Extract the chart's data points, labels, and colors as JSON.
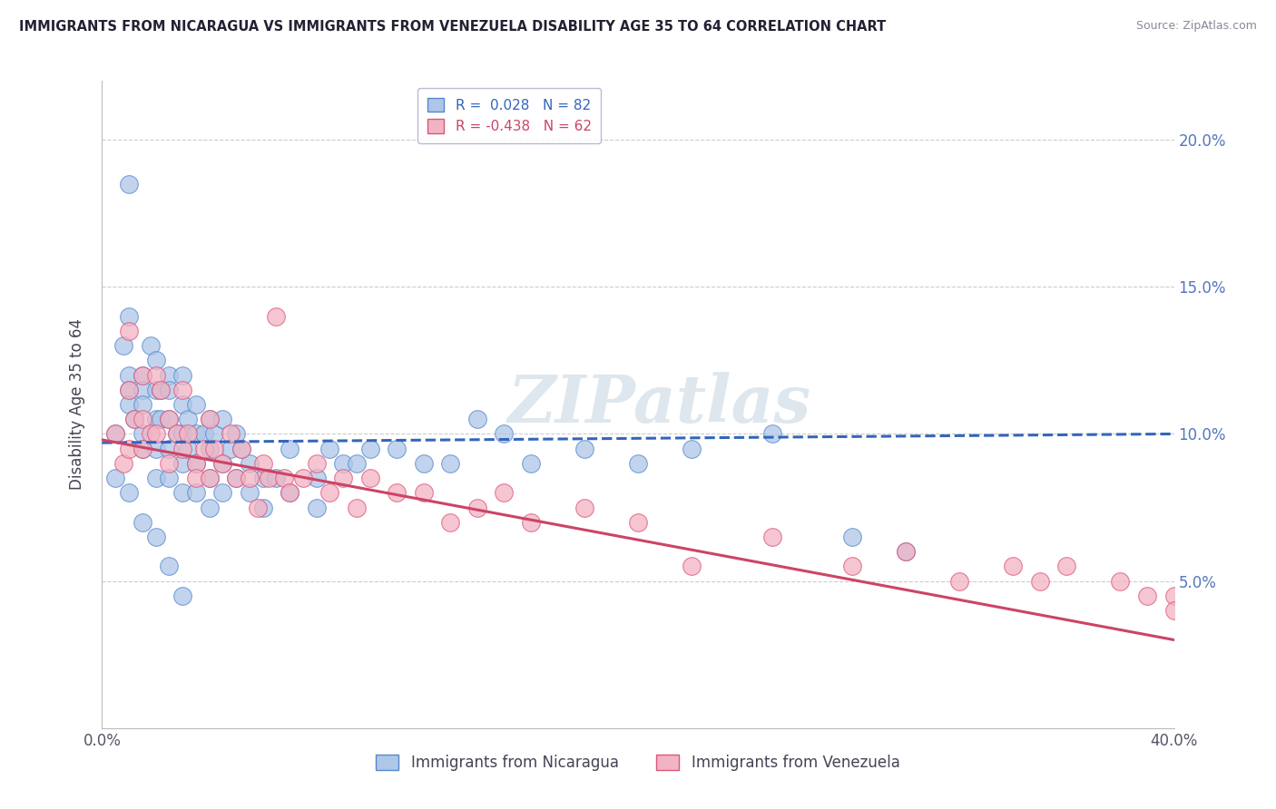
{
  "title": "IMMIGRANTS FROM NICARAGUA VS IMMIGRANTS FROM VENEZUELA DISABILITY AGE 35 TO 64 CORRELATION CHART",
  "source": "Source: ZipAtlas.com",
  "ylabel": "Disability Age 35 to 64",
  "xlim": [
    0.0,
    0.4
  ],
  "ylim": [
    0.0,
    0.22
  ],
  "xticks": [
    0.0,
    0.05,
    0.1,
    0.15,
    0.2,
    0.25,
    0.3,
    0.35,
    0.4
  ],
  "yticks": [
    0.0,
    0.05,
    0.1,
    0.15,
    0.2
  ],
  "nicaragua_color": "#aec6e8",
  "venezuela_color": "#f2b4c4",
  "nicaragua_edge_color": "#5588cc",
  "venezuela_edge_color": "#dd5577",
  "nicaragua_line_color": "#3366bb",
  "venezuela_line_color": "#cc4466",
  "R_nicaragua": 0.028,
  "N_nicaragua": 82,
  "R_venezuela": -0.438,
  "N_venezuela": 62,
  "nicaragua_x": [
    0.005,
    0.008,
    0.01,
    0.01,
    0.01,
    0.01,
    0.01,
    0.012,
    0.015,
    0.015,
    0.015,
    0.015,
    0.015,
    0.018,
    0.02,
    0.02,
    0.02,
    0.02,
    0.02,
    0.022,
    0.022,
    0.025,
    0.025,
    0.025,
    0.025,
    0.025,
    0.028,
    0.03,
    0.03,
    0.03,
    0.03,
    0.03,
    0.032,
    0.032,
    0.035,
    0.035,
    0.035,
    0.035,
    0.038,
    0.04,
    0.04,
    0.04,
    0.04,
    0.042,
    0.045,
    0.045,
    0.045,
    0.048,
    0.05,
    0.05,
    0.052,
    0.055,
    0.055,
    0.06,
    0.06,
    0.065,
    0.07,
    0.07,
    0.08,
    0.08,
    0.085,
    0.09,
    0.095,
    0.1,
    0.11,
    0.12,
    0.13,
    0.14,
    0.15,
    0.16,
    0.18,
    0.2,
    0.22,
    0.25,
    0.28,
    0.3,
    0.005,
    0.01,
    0.015,
    0.02,
    0.025,
    0.03
  ],
  "nicaragua_y": [
    0.1,
    0.13,
    0.185,
    0.14,
    0.12,
    0.115,
    0.11,
    0.105,
    0.12,
    0.115,
    0.11,
    0.1,
    0.095,
    0.13,
    0.125,
    0.115,
    0.105,
    0.095,
    0.085,
    0.115,
    0.105,
    0.12,
    0.115,
    0.105,
    0.095,
    0.085,
    0.1,
    0.12,
    0.11,
    0.1,
    0.09,
    0.08,
    0.105,
    0.095,
    0.11,
    0.1,
    0.09,
    0.08,
    0.1,
    0.105,
    0.095,
    0.085,
    0.075,
    0.1,
    0.105,
    0.09,
    0.08,
    0.095,
    0.1,
    0.085,
    0.095,
    0.09,
    0.08,
    0.085,
    0.075,
    0.085,
    0.095,
    0.08,
    0.085,
    0.075,
    0.095,
    0.09,
    0.09,
    0.095,
    0.095,
    0.09,
    0.09,
    0.105,
    0.1,
    0.09,
    0.095,
    0.09,
    0.095,
    0.1,
    0.065,
    0.06,
    0.085,
    0.08,
    0.07,
    0.065,
    0.055,
    0.045
  ],
  "venezuela_x": [
    0.005,
    0.008,
    0.01,
    0.01,
    0.01,
    0.012,
    0.015,
    0.015,
    0.015,
    0.018,
    0.02,
    0.02,
    0.022,
    0.025,
    0.025,
    0.028,
    0.03,
    0.03,
    0.032,
    0.035,
    0.035,
    0.038,
    0.04,
    0.04,
    0.042,
    0.045,
    0.048,
    0.05,
    0.052,
    0.055,
    0.058,
    0.06,
    0.062,
    0.065,
    0.068,
    0.07,
    0.075,
    0.08,
    0.085,
    0.09,
    0.095,
    0.1,
    0.11,
    0.12,
    0.13,
    0.14,
    0.15,
    0.16,
    0.18,
    0.2,
    0.22,
    0.25,
    0.28,
    0.3,
    0.32,
    0.34,
    0.35,
    0.36,
    0.38,
    0.39,
    0.4,
    0.4
  ],
  "venezuela_y": [
    0.1,
    0.09,
    0.135,
    0.115,
    0.095,
    0.105,
    0.12,
    0.105,
    0.095,
    0.1,
    0.12,
    0.1,
    0.115,
    0.105,
    0.09,
    0.1,
    0.115,
    0.095,
    0.1,
    0.09,
    0.085,
    0.095,
    0.105,
    0.085,
    0.095,
    0.09,
    0.1,
    0.085,
    0.095,
    0.085,
    0.075,
    0.09,
    0.085,
    0.14,
    0.085,
    0.08,
    0.085,
    0.09,
    0.08,
    0.085,
    0.075,
    0.085,
    0.08,
    0.08,
    0.07,
    0.075,
    0.08,
    0.07,
    0.075,
    0.07,
    0.055,
    0.065,
    0.055,
    0.06,
    0.05,
    0.055,
    0.05,
    0.055,
    0.05,
    0.045,
    0.045,
    0.04
  ]
}
